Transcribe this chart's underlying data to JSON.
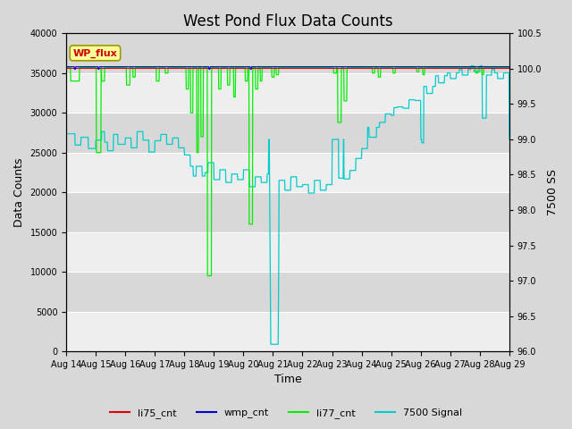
{
  "title": "West Pond Flux Data Counts",
  "xlabel": "Time",
  "ylabel_left": "Data Counts",
  "ylabel_right": "7500 SS",
  "ylim_left": [
    0,
    40000
  ],
  "ylim_right": [
    96.0,
    100.5
  ],
  "yticks_left": [
    0,
    5000,
    10000,
    15000,
    20000,
    25000,
    30000,
    35000,
    40000
  ],
  "yticks_right": [
    96.0,
    96.5,
    97.0,
    97.5,
    98.0,
    98.5,
    99.0,
    99.5,
    100.0,
    100.5
  ],
  "xtick_labels": [
    "Aug 14",
    "Aug 15",
    "Aug 16",
    "Aug 17",
    "Aug 18",
    "Aug 19",
    "Aug 20",
    "Aug 21",
    "Aug 22",
    "Aug 23",
    "Aug 24",
    "Aug 25",
    "Aug 26",
    "Aug 27",
    "Aug 28",
    "Aug 29"
  ],
  "fig_bg_color": "#d8d8d8",
  "plot_bg_color": "#e8e8e8",
  "band_color_light": "#eeeeee",
  "band_color_dark": "#d8d8d8",
  "grid_color": "#ffffff",
  "legend_entries": [
    "li75_cnt",
    "wmp_cnt",
    "li77_cnt",
    "7500 Signal"
  ],
  "legend_colors": [
    "#dd0000",
    "#0000cc",
    "#00ee00",
    "#00cccc"
  ],
  "wp_flux_box_color": "#ffff99",
  "wp_flux_text_color": "#cc0000",
  "title_fontsize": 12,
  "annotation": "WP_flux"
}
